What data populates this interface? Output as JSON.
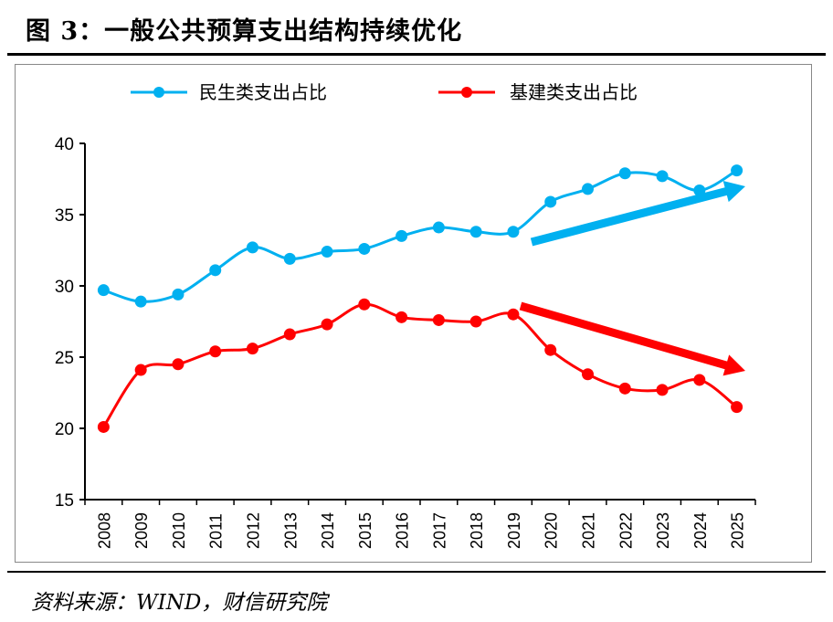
{
  "title": "图 3：一般公共预算支出结构持续优化",
  "source": "资料来源：WIND，财信研究院",
  "chart_data": {
    "type": "line",
    "title": "",
    "xlabel": "",
    "ylabel": "",
    "ylim": [
      15,
      40
    ],
    "yticks": [
      "15",
      "20",
      "25",
      "30",
      "35",
      "40"
    ],
    "categories": [
      "2008",
      "2009",
      "2010",
      "2011",
      "2012",
      "2013",
      "2014",
      "2015",
      "2016",
      "2017",
      "2018",
      "2019",
      "2020",
      "2021",
      "2022",
      "2023",
      "2024",
      "2025"
    ],
    "legend_position": "top",
    "grid": false,
    "series": [
      {
        "name": "民生类支出占比",
        "color": "#00B0F0",
        "values": [
          29.7,
          28.9,
          29.4,
          31.1,
          32.7,
          31.9,
          32.4,
          32.6,
          33.5,
          34.1,
          33.8,
          33.8,
          35.9,
          36.8,
          37.9,
          37.7,
          36.7,
          38.1
        ]
      },
      {
        "name": "基建类支出占比",
        "color": "#FF0000",
        "values": [
          20.1,
          24.1,
          24.5,
          25.4,
          25.6,
          26.6,
          27.3,
          28.7,
          27.8,
          27.6,
          27.5,
          28.0,
          25.5,
          23.8,
          22.8,
          22.7,
          23.4,
          21.5
        ]
      }
    ],
    "annotations": [
      {
        "type": "trend-arrow-up",
        "color": "#00B0F0"
      },
      {
        "type": "trend-arrow-down",
        "color": "#FF0000"
      }
    ]
  }
}
